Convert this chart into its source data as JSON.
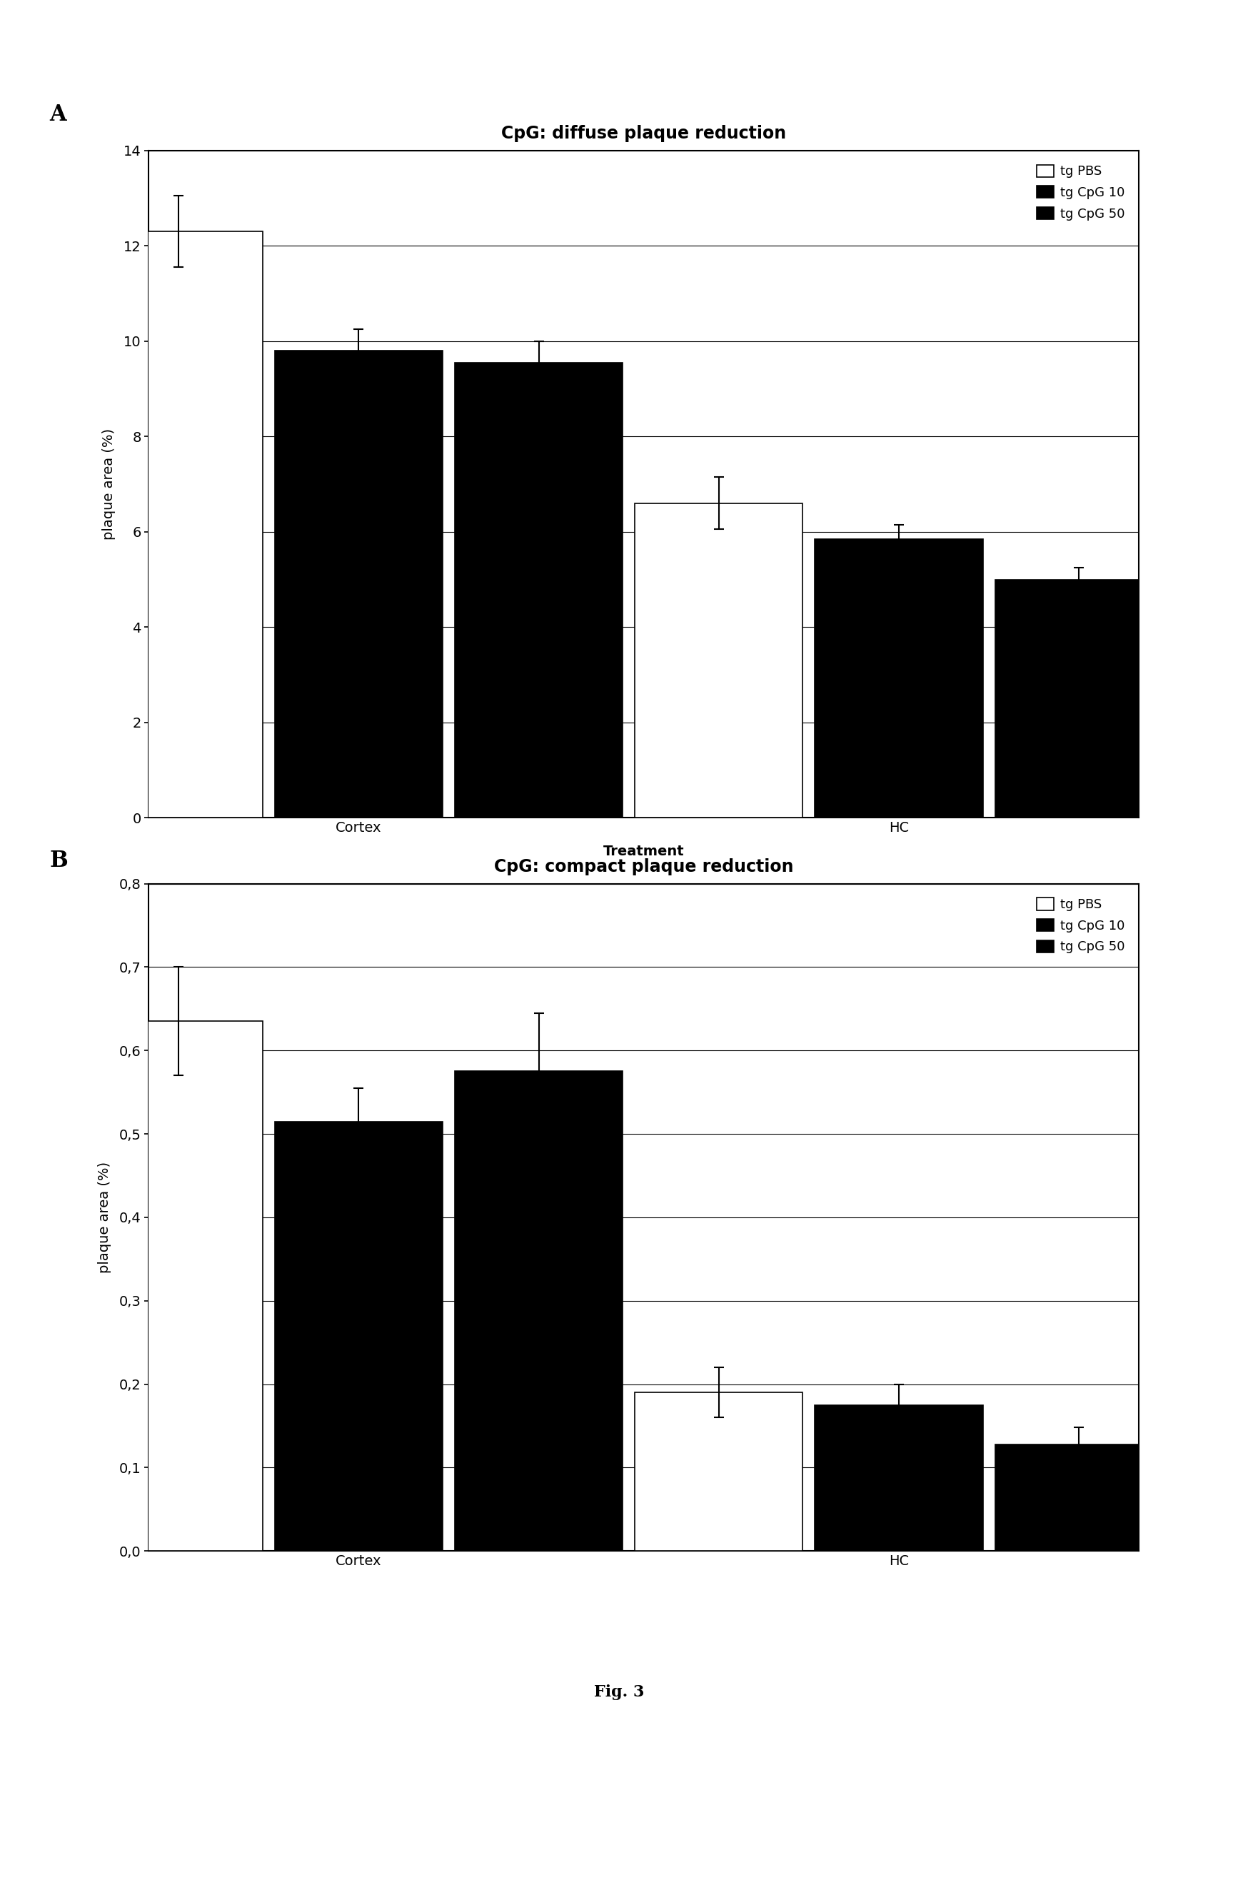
{
  "panel_A": {
    "title": "CpG: diffuse plaque reduction",
    "xlabel": "Treatment",
    "ylabel": "plaque area (%)",
    "groups": [
      "Cortex",
      "HC"
    ],
    "series": [
      "tg PBS",
      "tg CpG 10",
      "tg CpG 50"
    ],
    "values": {
      "Cortex": [
        12.3,
        9.8,
        9.55
      ],
      "HC": [
        6.6,
        5.85,
        5.0
      ]
    },
    "errors": {
      "Cortex": [
        0.75,
        0.45,
        0.45
      ],
      "HC": [
        0.55,
        0.3,
        0.25
      ]
    },
    "ylim": [
      0,
      14
    ],
    "yticks": [
      0,
      2,
      4,
      6,
      8,
      10,
      12,
      14
    ],
    "ytick_labels": [
      "0",
      "2",
      "4",
      "6",
      "8",
      "10",
      "12",
      "14"
    ],
    "colors": [
      "#ffffff",
      "#000000",
      "#000000"
    ],
    "bar_edge": "#000000",
    "legend_labels": [
      "tg PBS",
      "tg CpG 10",
      "tg CpG 50"
    ],
    "legend_colors": [
      "#ffffff",
      "#000000",
      "#000000"
    ],
    "legend_hatches": [
      "",
      "",
      "///"
    ]
  },
  "panel_B": {
    "title": "CpG: compact plaque reduction",
    "ylabel": "plaque area (%)",
    "groups": [
      "Cortex",
      "HC"
    ],
    "series": [
      "tg PBS",
      "tg CpG 10",
      "tg CpG 50"
    ],
    "values": {
      "Cortex": [
        0.635,
        0.515,
        0.575
      ],
      "HC": [
        0.19,
        0.175,
        0.128
      ]
    },
    "errors": {
      "Cortex": [
        0.065,
        0.04,
        0.07
      ],
      "HC": [
        0.03,
        0.025,
        0.02
      ]
    },
    "ylim": [
      0.0,
      0.8
    ],
    "yticks": [
      0.0,
      0.1,
      0.2,
      0.3,
      0.4,
      0.5,
      0.6,
      0.7,
      0.8
    ],
    "ytick_labels": [
      "0,0",
      "0,1",
      "0,2",
      "0,3",
      "0,4",
      "0,5",
      "0,6",
      "0,7",
      "0,8"
    ],
    "colors": [
      "#ffffff",
      "#000000",
      "#000000"
    ],
    "bar_edge": "#000000",
    "legend_labels": [
      "tg PBS",
      "tg CpG 10",
      "tg CpG 50"
    ],
    "legend_colors": [
      "#ffffff",
      "#000000",
      "#000000"
    ],
    "legend_hatches": [
      "",
      "",
      "///"
    ]
  },
  "fig_label": "Fig. 3",
  "background_color": "#ffffff"
}
